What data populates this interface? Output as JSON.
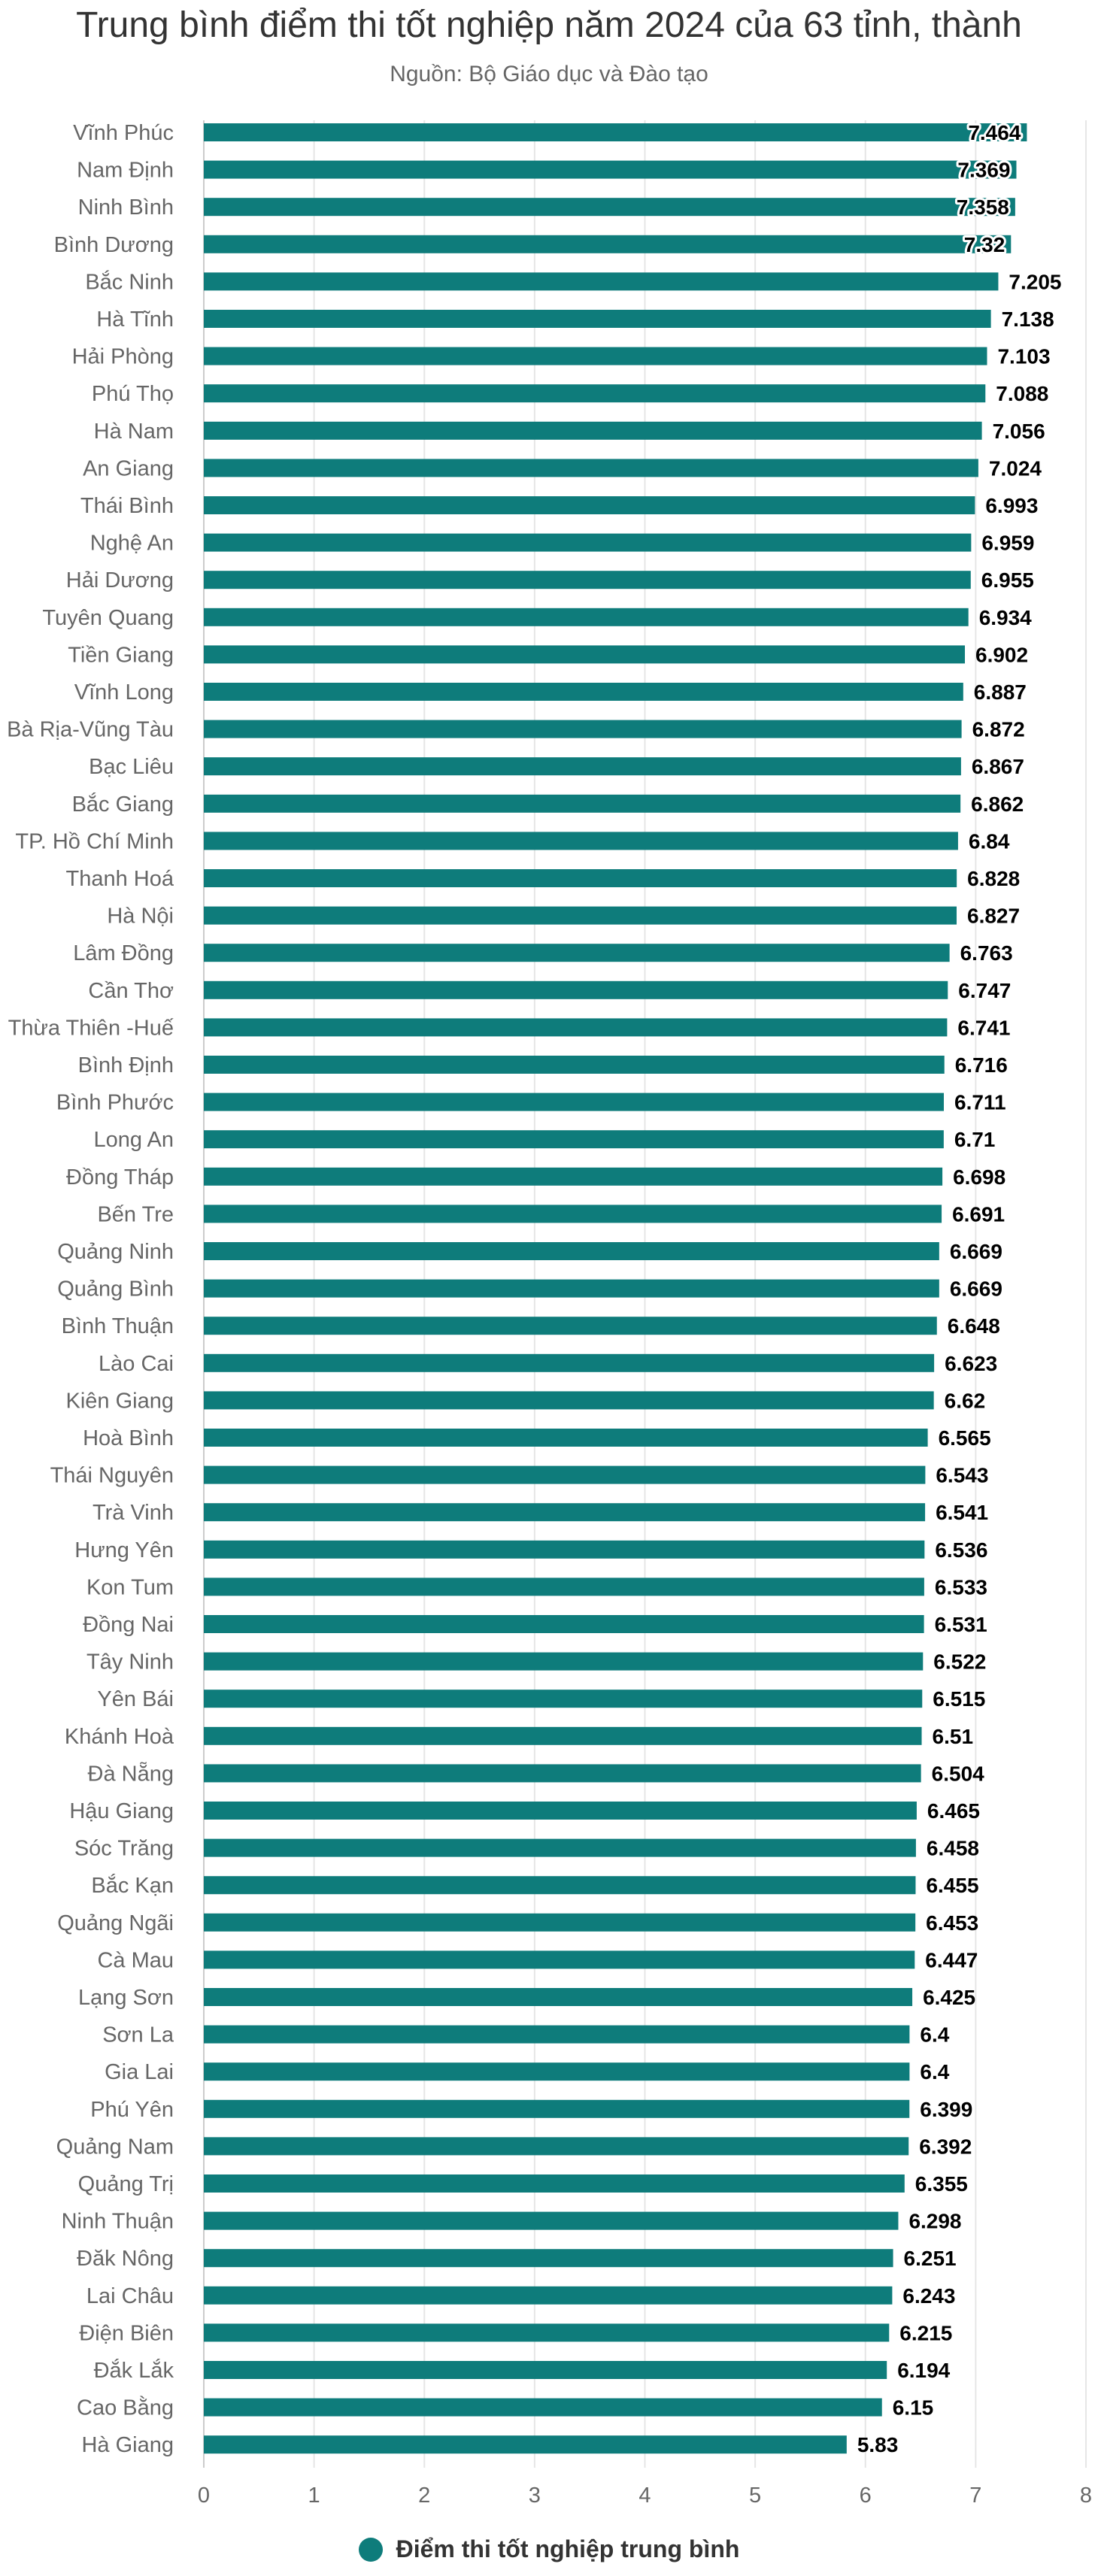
{
  "colors": {
    "bar": "#0e7c7b",
    "grid": "#e6e6e6",
    "axis": "#cccccc"
  },
  "chart_data": {
    "type": "bar",
    "orientation": "horizontal",
    "title": "Trung bình điểm thi tốt nghiệp năm 2024 của 63 tỉnh, thành",
    "subtitle": "Nguồn: Bộ Giáo dục và Đào tạo",
    "xlabel": "",
    "ylabel": "",
    "xlim": [
      0,
      8
    ],
    "ticks": [
      0,
      1,
      2,
      3,
      4,
      5,
      6,
      7,
      8
    ],
    "grid": true,
    "legend_position": "bottom",
    "categories": [
      "Vĩnh Phúc",
      "Nam Định",
      "Ninh Bình",
      "Bình Dương",
      "Bắc Ninh",
      "Hà Tĩnh",
      "Hải Phòng",
      "Phú Thọ",
      "Hà Nam",
      "An Giang",
      "Thái Bình",
      "Nghệ An",
      "Hải Dương",
      "Tuyên Quang",
      "Tiền Giang",
      "Vĩnh Long",
      "Bà Rịa-Vũng Tàu",
      "Bạc Liêu",
      "Bắc Giang",
      "TP. Hồ Chí Minh",
      "Thanh Hoá",
      "Hà Nội",
      "Lâm Đồng",
      "Cần Thơ",
      "Thừa Thiên -Huế",
      "Bình Định",
      "Bình Phước",
      "Long An",
      "Đồng Tháp",
      "Bến Tre",
      "Quảng Ninh",
      "Quảng Bình",
      "Bình Thuận",
      "Lào Cai",
      "Kiên Giang",
      "Hoà Bình",
      "Thái Nguyên",
      "Trà Vinh",
      "Hưng Yên",
      "Kon Tum",
      "Đồng Nai",
      "Tây Ninh",
      "Yên Bái",
      "Khánh Hoà",
      "Đà Nẵng",
      "Hậu Giang",
      "Sóc Trăng",
      "Bắc Kạn",
      "Quảng Ngãi",
      "Cà Mau",
      "Lạng Sơn",
      "Sơn La",
      "Gia Lai",
      "Phú Yên",
      "Quảng Nam",
      "Quảng Trị",
      "Ninh Thuận",
      "Đăk Nông",
      "Lai Châu",
      "Điện Biên",
      "Đắk Lắk",
      "Cao Bằng",
      "Hà Giang"
    ],
    "series": [
      {
        "name": "Điểm thi tốt nghiệp trung bình",
        "values": [
          7.464,
          7.369,
          7.358,
          7.32,
          7.205,
          7.138,
          7.103,
          7.088,
          7.056,
          7.024,
          6.993,
          6.959,
          6.955,
          6.934,
          6.902,
          6.887,
          6.872,
          6.867,
          6.862,
          6.84,
          6.828,
          6.827,
          6.763,
          6.747,
          6.741,
          6.716,
          6.711,
          6.71,
          6.698,
          6.691,
          6.669,
          6.669,
          6.648,
          6.623,
          6.62,
          6.565,
          6.543,
          6.541,
          6.536,
          6.533,
          6.531,
          6.522,
          6.515,
          6.51,
          6.504,
          6.465,
          6.458,
          6.455,
          6.453,
          6.447,
          6.425,
          6.4,
          6.4,
          6.399,
          6.392,
          6.355,
          6.298,
          6.251,
          6.243,
          6.215,
          6.194,
          6.15,
          5.83
        ]
      }
    ]
  }
}
